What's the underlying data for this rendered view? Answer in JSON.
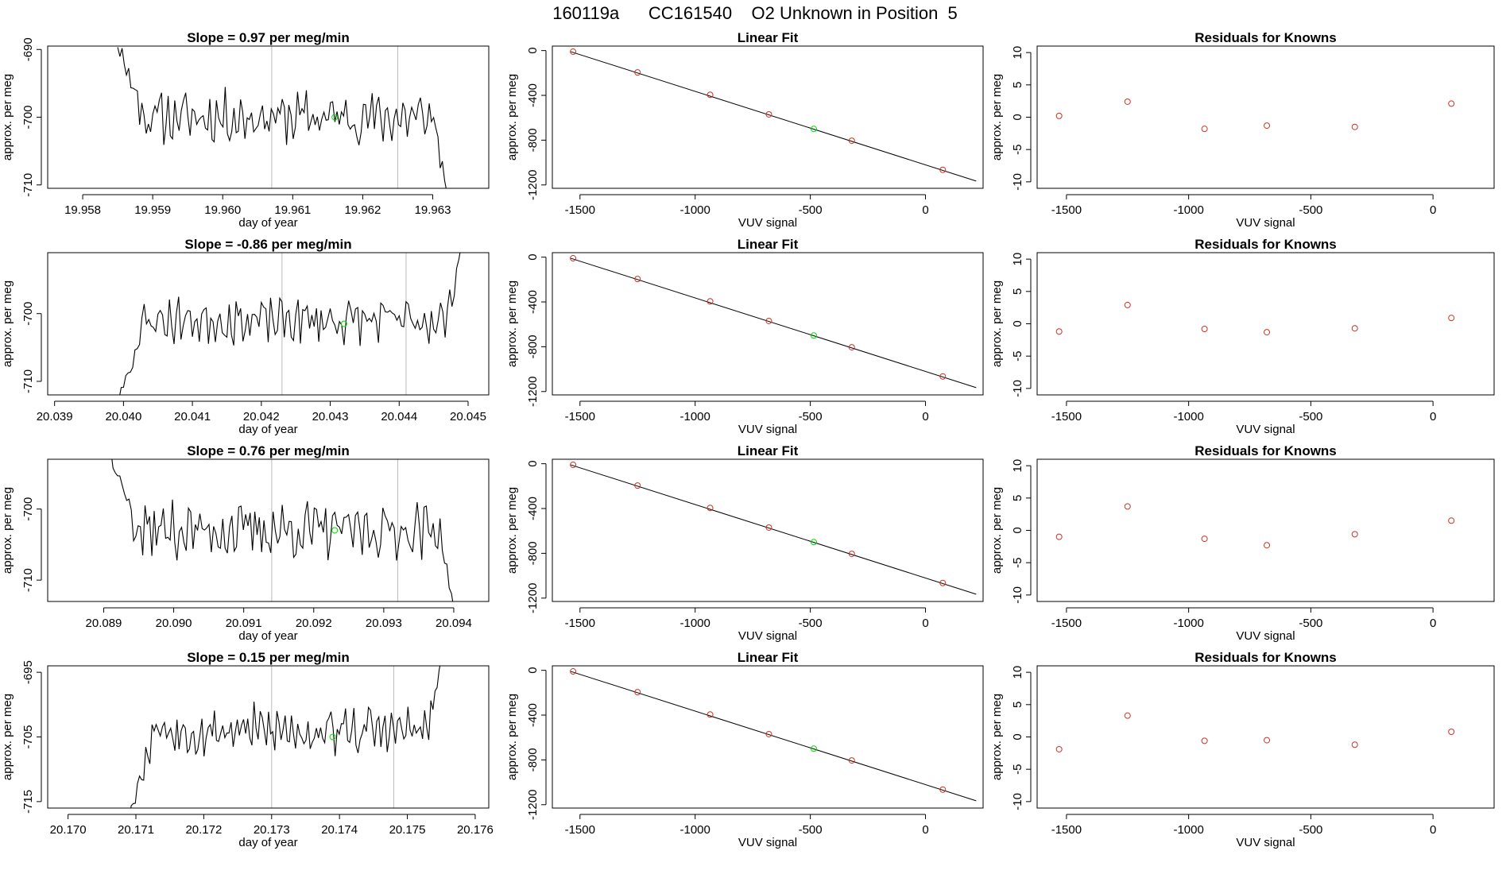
{
  "page_title": "160119a      CC161540    O2 Unknown in Position  5",
  "colors": {
    "trace": "#000000",
    "highlight": "#00dd00",
    "residual": "#cc3322",
    "gridline": "#bbbbbb"
  },
  "chart_data": [
    {
      "row": 1,
      "timeseries": {
        "type": "line",
        "title": "Slope =  0.97  per meg/min",
        "xlabel": "day of year",
        "ylabel": "approx. per meg",
        "xlim": [
          19.9575,
          19.9638
        ],
        "ylim": [
          -710.5,
          -689.5
        ],
        "xticks": [
          19.958,
          19.959,
          19.96,
          19.961,
          19.962,
          19.963
        ],
        "xtick_labels": [
          "19.958",
          "19.959",
          "19.960",
          "19.961",
          "19.962",
          "19.963"
        ],
        "yticks": [
          -710,
          -700,
          -690
        ],
        "ytick_labels": [
          "-710",
          "-700",
          "-690"
        ],
        "vlines": [
          19.9607,
          19.9625
        ],
        "x_start": 19.9585,
        "x_end": 19.9632,
        "mean": -700,
        "noise": 3,
        "start_value": -689,
        "end_value": -711,
        "seed": 11,
        "marker": {
          "x": 19.9616,
          "y": -700
        }
      },
      "linear_fit": {
        "type": "scatter",
        "title": "Linear Fit",
        "xlabel": "VUV signal",
        "ylabel": "approx. per meg",
        "xlim": [
          -1620,
          250
        ],
        "ylim": [
          -1230,
          40
        ],
        "xticks": [
          -1500,
          -1000,
          -500,
          0
        ],
        "xtick_labels": [
          "-1500",
          "-1000",
          "-500",
          "0"
        ],
        "yticks": [
          0,
          -400,
          -800,
          -1200
        ],
        "ytick_labels": [
          "0",
          "-400",
          "-800",
          "-1200"
        ],
        "line": {
          "x": [
            -1540,
            220
          ],
          "y": [
            -10,
            -1165
          ]
        },
        "points_x": [
          -1530,
          -1250,
          -935,
          -680,
          -320,
          75
        ],
        "points_y": [
          -10,
          -195,
          -395,
          -570,
          -805,
          -1065
        ],
        "unknown": {
          "x": -485,
          "y": -700
        }
      },
      "residuals": {
        "type": "scatter",
        "title": "Residuals for Knowns",
        "xlabel": "VUV signal",
        "ylabel": "approx. per meg",
        "xlim": [
          -1620,
          250
        ],
        "ylim": [
          -11,
          11
        ],
        "xticks": [
          -1500,
          -1000,
          -500,
          0
        ],
        "xtick_labels": [
          "-1500",
          "-1000",
          "-500",
          "0"
        ],
        "yticks": [
          10,
          5,
          0,
          -5,
          -10
        ],
        "ytick_labels": [
          "10",
          "5",
          "0",
          "-5",
          "-10"
        ],
        "points_x": [
          -1530,
          -1250,
          -935,
          -680,
          -320,
          75
        ],
        "points_y": [
          0.2,
          2.4,
          -1.8,
          -1.3,
          -1.5,
          2.1
        ]
      }
    },
    {
      "row": 2,
      "timeseries": {
        "type": "line",
        "title": "Slope =  -0.86  per meg/min",
        "xlabel": "day of year",
        "ylabel": "approx. per meg",
        "xlim": [
          20.0389,
          20.0453
        ],
        "ylim": [
          -712,
          -691
        ],
        "xticks": [
          20.039,
          20.04,
          20.041,
          20.042,
          20.043,
          20.044,
          20.045
        ],
        "xtick_labels": [
          "20.039",
          "20.040",
          "20.041",
          "20.042",
          "20.043",
          "20.044",
          "20.045"
        ],
        "yticks": [
          -710,
          -700
        ],
        "ytick_labels": [
          "-710",
          "-700"
        ],
        "vlines": [
          20.0423,
          20.0441
        ],
        "x_start": 20.0399,
        "x_end": 20.0449,
        "mean": -701,
        "noise": 2.6,
        "start_value": -714,
        "end_value": -690,
        "seed": 23,
        "marker": {
          "x": 20.0432,
          "y": -701.5
        }
      },
      "linear_fit": {
        "type": "scatter",
        "title": "Linear Fit",
        "xlabel": "VUV signal",
        "ylabel": "approx. per meg",
        "xlim": [
          -1620,
          250
        ],
        "ylim": [
          -1230,
          40
        ],
        "xticks": [
          -1500,
          -1000,
          -500,
          0
        ],
        "xtick_labels": [
          "-1500",
          "-1000",
          "-500",
          "0"
        ],
        "yticks": [
          0,
          -400,
          -800,
          -1200
        ],
        "ytick_labels": [
          "0",
          "-400",
          "-800",
          "-1200"
        ],
        "line": {
          "x": [
            -1540,
            220
          ],
          "y": [
            -10,
            -1165
          ]
        },
        "points_x": [
          -1530,
          -1250,
          -935,
          -680,
          -320,
          75
        ],
        "points_y": [
          -10,
          -195,
          -395,
          -570,
          -805,
          -1065
        ],
        "unknown": {
          "x": -485,
          "y": -700
        }
      },
      "residuals": {
        "type": "scatter",
        "title": "Residuals for Knowns",
        "xlabel": "VUV signal",
        "ylabel": "approx. per meg",
        "xlim": [
          -1620,
          250
        ],
        "ylim": [
          -11,
          11
        ],
        "xticks": [
          -1500,
          -1000,
          -500,
          0
        ],
        "xtick_labels": [
          "-1500",
          "-1000",
          "-500",
          "0"
        ],
        "yticks": [
          10,
          5,
          0,
          -5,
          -10
        ],
        "ytick_labels": [
          "10",
          "5",
          "0",
          "-5",
          "-10"
        ],
        "points_x": [
          -1530,
          -1250,
          -935,
          -680,
          -320,
          75
        ],
        "points_y": [
          -1.2,
          2.9,
          -0.8,
          -1.3,
          -0.7,
          0.9
        ]
      }
    },
    {
      "row": 3,
      "timeseries": {
        "type": "line",
        "title": "Slope =  0.76  per meg/min",
        "xlabel": "day of year",
        "ylabel": "approx. per meg",
        "xlim": [
          20.0882,
          20.0945
        ],
        "ylim": [
          -713,
          -693
        ],
        "xticks": [
          20.089,
          20.09,
          20.091,
          20.092,
          20.093,
          20.094
        ],
        "xtick_labels": [
          "20.089",
          "20.090",
          "20.091",
          "20.092",
          "20.093",
          "20.094"
        ],
        "yticks": [
          -710,
          -700
        ],
        "ytick_labels": [
          "-710",
          "-700"
        ],
        "vlines": [
          20.0914,
          20.0932
        ],
        "x_start": 20.0891,
        "x_end": 20.094,
        "mean": -703,
        "noise": 3,
        "start_value": -692,
        "end_value": -714,
        "seed": 37,
        "marker": {
          "x": 20.0923,
          "y": -703
        }
      },
      "linear_fit": {
        "type": "scatter",
        "title": "Linear Fit",
        "xlabel": "VUV signal",
        "ylabel": "approx. per meg",
        "xlim": [
          -1620,
          250
        ],
        "ylim": [
          -1230,
          40
        ],
        "xticks": [
          -1500,
          -1000,
          -500,
          0
        ],
        "xtick_labels": [
          "-1500",
          "-1000",
          "-500",
          "0"
        ],
        "yticks": [
          0,
          -400,
          -800,
          -1200
        ],
        "ytick_labels": [
          "0",
          "-400",
          "-800",
          "-1200"
        ],
        "line": {
          "x": [
            -1540,
            220
          ],
          "y": [
            -10,
            -1165
          ]
        },
        "points_x": [
          -1530,
          -1250,
          -935,
          -680,
          -320,
          75
        ],
        "points_y": [
          -10,
          -195,
          -395,
          -570,
          -805,
          -1065
        ],
        "unknown": {
          "x": -485,
          "y": -700
        }
      },
      "residuals": {
        "type": "scatter",
        "title": "Residuals for Knowns",
        "xlabel": "VUV signal",
        "ylabel": "approx. per meg",
        "xlim": [
          -1620,
          250
        ],
        "ylim": [
          -11,
          11
        ],
        "xticks": [
          -1500,
          -1000,
          -500,
          0
        ],
        "xtick_labels": [
          "-1500",
          "-1000",
          "-500",
          "0"
        ],
        "yticks": [
          10,
          5,
          0,
          -5,
          -10
        ],
        "ytick_labels": [
          "10",
          "5",
          "0",
          "-5",
          "-10"
        ],
        "points_x": [
          -1530,
          -1250,
          -935,
          -680,
          -320,
          75
        ],
        "points_y": [
          -1.0,
          3.7,
          -1.3,
          -2.3,
          -0.6,
          1.5
        ]
      }
    },
    {
      "row": 4,
      "timeseries": {
        "type": "line",
        "title": "Slope =  0.15  per meg/min",
        "xlabel": "day of year",
        "ylabel": "approx. per meg",
        "xlim": [
          20.1697,
          20.1762
        ],
        "ylim": [
          -716,
          -694
        ],
        "xticks": [
          20.17,
          20.171,
          20.172,
          20.173,
          20.174,
          20.175,
          20.176
        ],
        "xtick_labels": [
          "20.170",
          "20.171",
          "20.172",
          "20.173",
          "20.174",
          "20.175",
          "20.176"
        ],
        "yticks": [
          -715,
          -705,
          -695
        ],
        "ytick_labels": [
          "-715",
          "-705",
          "-695"
        ],
        "vlines": [
          20.173,
          20.1748
        ],
        "x_start": 20.1709,
        "x_end": 20.1755,
        "mean": -704,
        "noise": 3,
        "start_value": -717,
        "end_value": -693,
        "seed": 53,
        "marker": {
          "x": 20.1739,
          "y": -705
        }
      },
      "linear_fit": {
        "type": "scatter",
        "title": "Linear Fit",
        "xlabel": "VUV signal",
        "ylabel": "approx. per meg",
        "xlim": [
          -1620,
          250
        ],
        "ylim": [
          -1230,
          40
        ],
        "xticks": [
          -1500,
          -1000,
          -500,
          0
        ],
        "xtick_labels": [
          "-1500",
          "-1000",
          "-500",
          "0"
        ],
        "yticks": [
          0,
          -400,
          -800,
          -1200
        ],
        "ytick_labels": [
          "0",
          "-400",
          "-800",
          "-1200"
        ],
        "line": {
          "x": [
            -1540,
            220
          ],
          "y": [
            -10,
            -1165
          ]
        },
        "points_x": [
          -1530,
          -1250,
          -935,
          -680,
          -320,
          75
        ],
        "points_y": [
          -10,
          -195,
          -395,
          -570,
          -805,
          -1065
        ],
        "unknown": {
          "x": -485,
          "y": -700
        }
      },
      "residuals": {
        "type": "scatter",
        "title": "Residuals for Knowns",
        "xlabel": "VUV signal",
        "ylabel": "approx. per meg",
        "xlim": [
          -1620,
          250
        ],
        "ylim": [
          -11,
          11
        ],
        "xticks": [
          -1500,
          -1000,
          -500,
          0
        ],
        "xtick_labels": [
          "-1500",
          "-1000",
          "-500",
          "0"
        ],
        "yticks": [
          10,
          5,
          0,
          -5,
          -10
        ],
        "ytick_labels": [
          "10",
          "5",
          "0",
          "-5",
          "-10"
        ],
        "points_x": [
          -1530,
          -1250,
          -935,
          -680,
          -320,
          75
        ],
        "points_y": [
          -1.9,
          3.3,
          -0.6,
          -0.5,
          -1.2,
          0.8
        ]
      }
    }
  ]
}
